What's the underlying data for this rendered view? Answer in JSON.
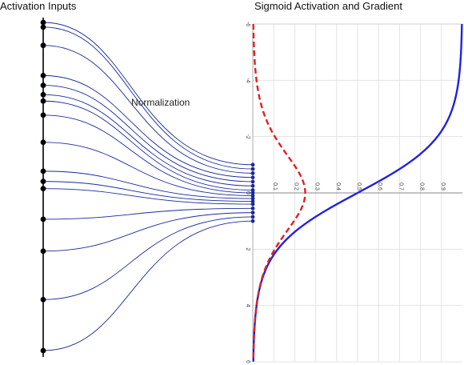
{
  "left_title": "Activation Inputs",
  "right_title": "Sigmoid Activation and Gradient",
  "annotation": "Normalization",
  "chart_data": {
    "type": "line",
    "title": "Sigmoid Activation and Gradient",
    "orientation": "rotated",
    "input_axis_range": [
      -6,
      6
    ],
    "input_axis_ticks": [
      "6",
      "4",
      "2",
      "0",
      "-2",
      "-4",
      "-6"
    ],
    "output_axis_range": [
      0,
      1
    ],
    "output_axis_ticks": [
      "0.1",
      "0.2",
      "0.3",
      "0.4",
      "0.5",
      "0.6",
      "0.7",
      "0.8",
      "0.9"
    ],
    "grid": true,
    "series": [
      {
        "function": "sigmoid",
        "color": "#2222dd",
        "style": "solid"
      },
      {
        "function": "sigmoid derivative",
        "color": "#dd2222",
        "style": "dashed"
      }
    ]
  },
  "diagram": {
    "inputs": [
      0.0,
      0.11,
      0.54,
      1.25,
      1.48,
      1.7,
      1.85,
      2.18,
      2.82,
      3.5,
      3.74,
      3.91,
      4.63,
      5.38,
      6.52,
      7.72
    ],
    "outputs": [
      -1.0,
      -0.85,
      -0.7,
      -0.55,
      -0.4,
      -0.25,
      -0.1,
      0.0,
      0.1,
      0.2,
      0.3,
      0.4,
      0.55,
      0.7,
      0.85,
      1.0
    ],
    "line_color": "#1a2a9a",
    "node_color": "#000000",
    "output_node_color": "#1a2a9a"
  }
}
